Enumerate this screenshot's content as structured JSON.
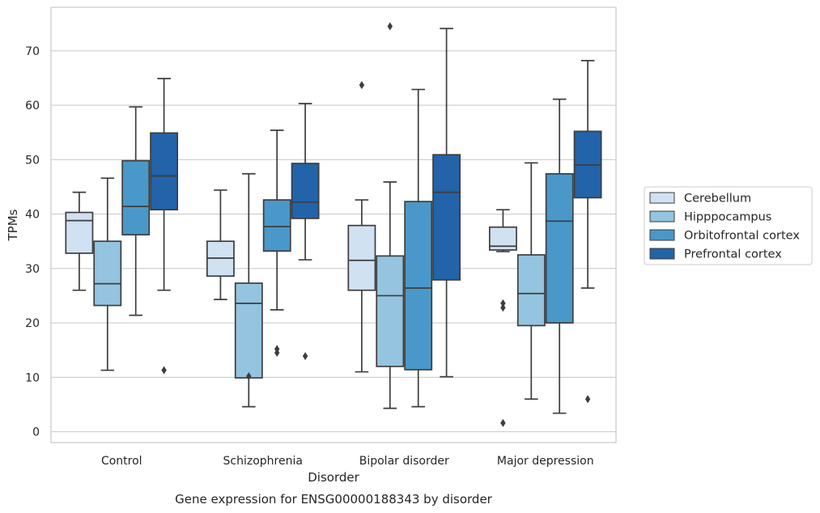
{
  "chart_data": {
    "type": "box",
    "title": "Gene expression for ENSG00000188343 by disorder",
    "xlabel": "Disorder",
    "ylabel": "TPMs",
    "ylim": [
      -2,
      78
    ],
    "yticks": [
      0,
      10,
      20,
      30,
      40,
      50,
      60,
      70
    ],
    "grid": "horizontal",
    "legend_position": "right",
    "categories": [
      "Control",
      "Schizophrenia",
      "Bipolar disorder",
      "Major depression"
    ],
    "series": [
      {
        "name": "Cerebellum",
        "color": "#d0e1f2",
        "boxes": [
          {
            "whisker_low": 26.0,
            "q1": 32.8,
            "median": 38.8,
            "q3": 40.3,
            "whisker_high": 44.0,
            "outliers": []
          },
          {
            "whisker_low": 24.3,
            "q1": 28.6,
            "median": 31.9,
            "q3": 35.0,
            "whisker_high": 44.4,
            "outliers": []
          },
          {
            "whisker_low": 11.0,
            "q1": 26.0,
            "median": 31.5,
            "q3": 37.9,
            "whisker_high": 42.6,
            "outliers": [
              63.7
            ]
          },
          {
            "whisker_low": 33.1,
            "q1": 33.4,
            "median": 34.1,
            "q3": 37.6,
            "whisker_high": 40.8,
            "outliers": [
              1.6,
              22.8,
              23.6
            ]
          }
        ]
      },
      {
        "name": "Hipppocampus",
        "color": "#94c4df",
        "boxes": [
          {
            "whisker_low": 11.3,
            "q1": 23.2,
            "median": 27.2,
            "q3": 35.0,
            "whisker_high": 46.6,
            "outliers": []
          },
          {
            "whisker_low": 4.6,
            "q1": 9.9,
            "median": 23.6,
            "q3": 27.3,
            "whisker_high": 47.4,
            "outliers": [
              10.2
            ]
          },
          {
            "whisker_low": 4.3,
            "q1": 12.0,
            "median": 25.0,
            "q3": 32.3,
            "whisker_high": 45.9,
            "outliers": [
              74.5
            ]
          },
          {
            "whisker_low": 6.0,
            "q1": 19.5,
            "median": 25.4,
            "q3": 32.5,
            "whisker_high": 49.4,
            "outliers": []
          }
        ]
      },
      {
        "name": "Orbitofrontal cortex",
        "color": "#4a98c9",
        "boxes": [
          {
            "whisker_low": 21.4,
            "q1": 36.2,
            "median": 41.4,
            "q3": 49.8,
            "whisker_high": 59.7,
            "outliers": []
          },
          {
            "whisker_low": 22.4,
            "q1": 33.2,
            "median": 37.7,
            "q3": 42.6,
            "whisker_high": 55.4,
            "outliers": [
              14.5,
              15.2
            ]
          },
          {
            "whisker_low": 4.6,
            "q1": 11.4,
            "median": 26.4,
            "q3": 42.3,
            "whisker_high": 62.9,
            "outliers": []
          },
          {
            "whisker_low": 3.4,
            "q1": 20.0,
            "median": 38.7,
            "q3": 47.4,
            "whisker_high": 61.1,
            "outliers": []
          }
        ]
      },
      {
        "name": "Prefrontal cortex",
        "color": "#2263a9",
        "boxes": [
          {
            "whisker_low": 26.0,
            "q1": 40.8,
            "median": 47.0,
            "q3": 54.9,
            "whisker_high": 64.9,
            "outliers": [
              11.3
            ]
          },
          {
            "whisker_low": 31.6,
            "q1": 39.2,
            "median": 42.2,
            "q3": 49.3,
            "whisker_high": 60.3,
            "outliers": [
              13.9
            ]
          },
          {
            "whisker_low": 10.1,
            "q1": 27.9,
            "median": 44.0,
            "q3": 50.9,
            "whisker_high": 74.1,
            "outliers": []
          },
          {
            "whisker_low": 26.4,
            "q1": 43.0,
            "median": 49.0,
            "q3": 55.2,
            "whisker_high": 68.2,
            "outliers": [
              6.0
            ]
          }
        ]
      }
    ]
  }
}
